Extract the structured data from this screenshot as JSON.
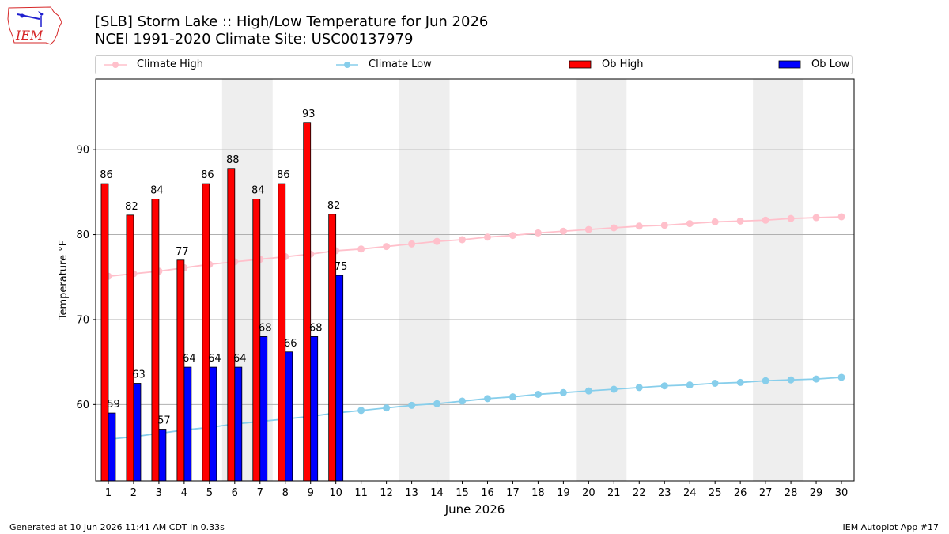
{
  "header": {
    "title": "[SLB] Storm Lake :: High/Low Temperature for Jun 2026",
    "subtitle": "NCEI 1991-2020 Climate Site: USC00137979"
  },
  "logo": {
    "text": "IEM",
    "icon": "iem-iowa-logo",
    "color": "#d62728"
  },
  "legend": {
    "climate_high": "Climate High",
    "climate_low": "Climate Low",
    "ob_high": "Ob High",
    "ob_low": "Ob Low",
    "placement": "top, above plot, expanded"
  },
  "footer": {
    "generated": "Generated at 10 Jun 2026 11:41 AM CDT in 0.33s",
    "app": "IEM Autoplot App #17"
  },
  "chart_data": {
    "type": "bar",
    "xlabel": "June 2026",
    "ylabel": "Temperature °F",
    "days": [
      1,
      2,
      3,
      4,
      5,
      6,
      7,
      8,
      9,
      10,
      11,
      12,
      13,
      14,
      15,
      16,
      17,
      18,
      19,
      20,
      21,
      22,
      23,
      24,
      25,
      26,
      27,
      28,
      29,
      30
    ],
    "xlim": [
      0.5,
      30.5
    ],
    "ylim": [
      51,
      98.3
    ],
    "yticks": [
      60,
      70,
      80,
      90
    ],
    "grid": "horizontal",
    "weekend_shading": [
      [
        5.5,
        7.5
      ],
      [
        12.5,
        14.5
      ],
      [
        19.5,
        21.5
      ],
      [
        26.5,
        28.5
      ]
    ],
    "series": [
      {
        "name": "Ob High",
        "type": "bar",
        "color": "#ff0000",
        "values": [
          86,
          82.3,
          84.2,
          77,
          86,
          87.8,
          84.2,
          86,
          93.2,
          82.4
        ],
        "labels": [
          "86",
          "82",
          "84",
          "77",
          "86",
          "88",
          "84",
          "86",
          "93",
          "82"
        ]
      },
      {
        "name": "Ob Low",
        "type": "bar",
        "color": "#0000ff",
        "values": [
          59,
          62.5,
          57.1,
          64.4,
          64.4,
          64.4,
          68,
          66.2,
          68,
          75.2
        ],
        "labels": [
          "59",
          "63",
          "57",
          "64",
          "64",
          "64",
          "68",
          "66",
          "68",
          "75"
        ]
      },
      {
        "name": "Climate High",
        "type": "line",
        "color": "#ffc0cb",
        "values": [
          75.1,
          75.4,
          75.7,
          76.1,
          76.5,
          76.8,
          77.1,
          77.4,
          77.7,
          78.1,
          78.3,
          78.6,
          78.9,
          79.2,
          79.4,
          79.7,
          79.9,
          80.2,
          80.4,
          80.6,
          80.8,
          81.0,
          81.1,
          81.3,
          81.5,
          81.6,
          81.7,
          81.9,
          82.0,
          82.1
        ]
      },
      {
        "name": "Climate Low",
        "type": "line",
        "color": "#87ceeb",
        "values": [
          55.9,
          56.2,
          56.6,
          57.0,
          57.3,
          57.7,
          58.0,
          58.3,
          58.6,
          59.0,
          59.3,
          59.6,
          59.9,
          60.1,
          60.4,
          60.7,
          60.9,
          61.2,
          61.4,
          61.6,
          61.8,
          62.0,
          62.2,
          62.3,
          62.5,
          62.6,
          62.8,
          62.9,
          63.0,
          63.2
        ]
      }
    ]
  }
}
